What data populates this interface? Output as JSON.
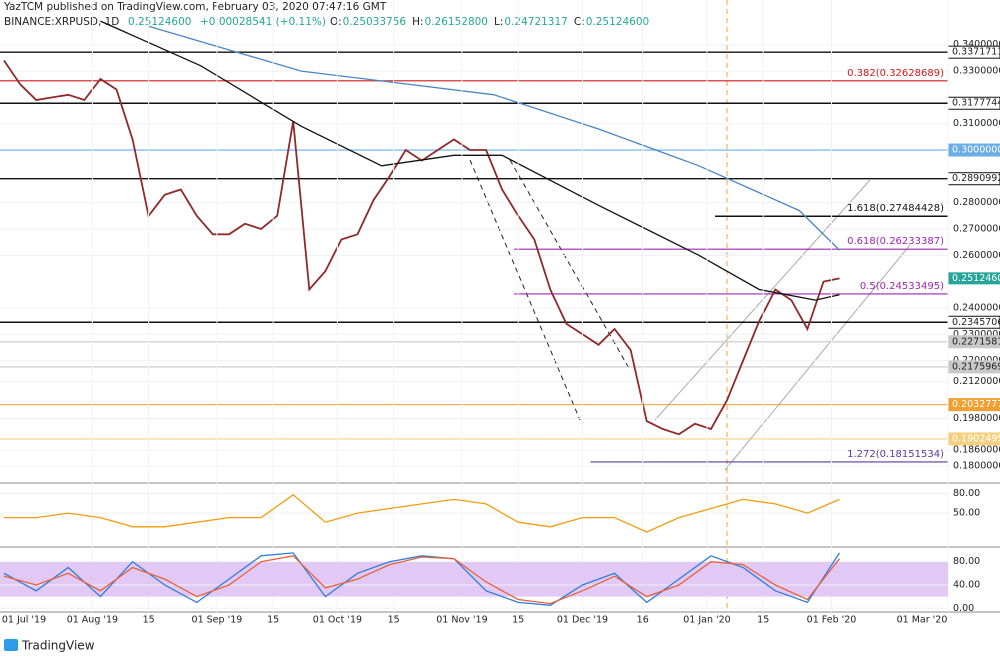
{
  "header": {
    "publisher": "YazTCM published on TradingView.com, February 03, 2020 07:47:16 GMT",
    "symbol": "BINANCE:XRPUSD, 1D",
    "last": "0.25124600",
    "change": "+0.00028541 (+0.11%)",
    "ohlc": [
      {
        "key": "O:",
        "value": "0.25033756"
      },
      {
        "key": "H:",
        "value": "0.26152800"
      },
      {
        "key": "L:",
        "value": "0.24721317"
      },
      {
        "key": "C:",
        "value": "0.25124600"
      }
    ]
  },
  "footer": {
    "brand": "TradingView"
  },
  "chart_data": [
    {
      "type": "line",
      "x": [
        "2019-07-10",
        "2019-07-14",
        "2019-07-18",
        "2019-07-22",
        "2019-07-26",
        "2019-07-30",
        "2019-08-03",
        "2019-08-07",
        "2019-08-11",
        "2019-08-15",
        "2019-08-19",
        "2019-08-23",
        "2019-08-27",
        "2019-08-31",
        "2019-09-04",
        "2019-09-08",
        "2019-09-12",
        "2019-09-16",
        "2019-09-20",
        "2019-09-24",
        "2019-09-28",
        "2019-10-02",
        "2019-10-06",
        "2019-10-10",
        "2019-10-14",
        "2019-10-18",
        "2019-10-22",
        "2019-10-26",
        "2019-10-30",
        "2019-11-03",
        "2019-11-07",
        "2019-11-11",
        "2019-11-15",
        "2019-11-19",
        "2019-11-23",
        "2019-11-27",
        "2019-12-01",
        "2019-12-05",
        "2019-12-09",
        "2019-12-13",
        "2019-12-17",
        "2019-12-21",
        "2019-12-25",
        "2019-12-29",
        "2020-01-02",
        "2020-01-06",
        "2020-01-10",
        "2020-01-14",
        "2020-01-18",
        "2020-01-22",
        "2020-01-26",
        "2020-01-30",
        "2020-02-03"
      ],
      "series": [
        {
          "color": "#8e2a2a",
          "values": [
            0.334,
            0.325,
            0.319,
            0.32,
            0.321,
            0.319,
            0.327,
            0.323,
            0.304,
            0.275,
            0.283,
            0.285,
            0.275,
            0.268,
            0.268,
            0.272,
            0.27,
            0.275,
            0.311,
            0.247,
            0.254,
            0.266,
            0.268,
            0.281,
            0.29,
            0.3,
            0.296,
            0.3,
            0.304,
            0.3,
            0.3,
            0.285,
            0.275,
            0.266,
            0.247,
            0.234,
            0.23,
            0.226,
            0.232,
            0.224,
            0.197,
            0.194,
            0.192,
            0.196,
            0.194,
            0.205,
            0.22,
            0.235,
            0.247,
            0.243,
            0.232,
            0.25,
            0.251246
          ]
        },
        {
          "color": "#4a86c5",
          "x": [
            "2019-08-15",
            "2019-09-22",
            "2019-11-09",
            "2019-12-05",
            "2019-12-30",
            "2020-01-24",
            "2020-02-03"
          ],
          "values": [
            0.347,
            0.33,
            0.321,
            0.308,
            0.294,
            0.277,
            0.262
          ]
        },
        {
          "color": "#111111",
          "x": [
            "2019-08-03",
            "2019-08-28",
            "2019-09-22",
            "2019-10-12",
            "2019-10-30",
            "2019-11-11",
            "2019-12-05",
            "2019-12-30",
            "2020-01-14",
            "2020-01-28",
            "2020-02-03"
          ],
          "values": [
            0.349,
            0.332,
            0.309,
            0.294,
            0.298,
            0.298,
            0.279,
            0.26,
            0.247,
            0.243,
            0.245
          ]
        }
      ],
      "xlim": [
        "2019-07-09",
        "2020-03-01"
      ],
      "xticks": [
        {
          "value": "2019-07-01",
          "label": "01 Jul '19"
        },
        {
          "value": "2019-08-01",
          "label": "01 Aug '19"
        },
        {
          "value": "2019-08-15",
          "label": "15"
        },
        {
          "value": "2019-09-01",
          "label": "01 Sep '19"
        },
        {
          "value": "2019-09-15",
          "label": "15"
        },
        {
          "value": "2019-10-01",
          "label": "01 Oct '19"
        },
        {
          "value": "2019-10-15",
          "label": "15"
        },
        {
          "value": "2019-11-01",
          "label": "01 Nov '19"
        },
        {
          "value": "2019-11-15",
          "label": "15"
        },
        {
          "value": "2019-12-01",
          "label": "01 Dec '19"
        },
        {
          "value": "2019-12-16",
          "label": "16"
        },
        {
          "value": "2020-01-01",
          "label": "01 Jan '20"
        },
        {
          "value": "2020-01-15",
          "label": "15"
        },
        {
          "value": "2020-02-01",
          "label": "01 Feb '20"
        },
        {
          "value": "2020-03-01",
          "label": "01 Mar '20"
        }
      ],
      "ylim": [
        0.1735,
        0.357
      ],
      "yticks": [
        {
          "value": 0.34,
          "label": "0.34000000"
        },
        {
          "value": 0.33,
          "label": "0.33000000"
        },
        {
          "value": 0.31,
          "label": "0.31000000"
        },
        {
          "value": 0.28,
          "label": "0.28000000"
        },
        {
          "value": 0.27,
          "label": "0.27000000"
        },
        {
          "value": 0.26,
          "label": "0.26000000"
        },
        {
          "value": 0.24,
          "label": "0.24000000"
        },
        {
          "value": 0.23,
          "label": "0.23000000"
        },
        {
          "value": 0.22,
          "label": "0.22000000"
        },
        {
          "value": 0.212,
          "label": "0.21200000"
        },
        {
          "value": 0.198,
          "label": "0.19800000"
        },
        {
          "value": 0.186,
          "label": "0.18600000"
        },
        {
          "value": 0.18,
          "label": "0.18000000"
        }
      ],
      "levels": [
        {
          "value": 0.33717116,
          "label": "0.33717116",
          "color": "#111111",
          "place": "axis"
        },
        {
          "value": 0.32628689,
          "label": "0.382(0.32628689)",
          "color": "#d01818",
          "place": "inline"
        },
        {
          "value": 0.31777446,
          "label": "0.31777446",
          "color": "#111111",
          "place": "axis"
        },
        {
          "value": 0.3,
          "label": "0.30000000",
          "color": "#6aaee8",
          "place": "axis"
        },
        {
          "value": 0.2890992,
          "label": "0.28909920",
          "color": "#111111",
          "place": "axis"
        },
        {
          "value": 0.27484428,
          "label": "1.618(0.27484428)",
          "color": "#111111",
          "place": "inline",
          "from": "2020-01-03"
        },
        {
          "value": 0.26233387,
          "label": "0.618(0.26233387)",
          "color": "#9c27b0",
          "place": "inline",
          "from": "2019-11-14"
        },
        {
          "value": 0.24533495,
          "label": "0.5(0.24533495)",
          "color": "#9c27b0",
          "place": "inline",
          "from": "2019-11-14"
        },
        {
          "value": 0.23457062,
          "label": "0.23457062",
          "color": "#111111",
          "place": "axis"
        },
        {
          "value": 0.22715817,
          "label": "0.22715817",
          "color": "#c8c8c8",
          "place": "axis"
        },
        {
          "value": 0.21759694,
          "label": "0.21759694",
          "color": "#c8c8c8",
          "place": "axis"
        },
        {
          "value": 0.2032777,
          "label": "0.20327770",
          "color": "#f0a030",
          "place": "axis"
        },
        {
          "value": 0.1902495,
          "label": "0.19024950",
          "color": "#f5d080",
          "place": "axis"
        },
        {
          "value": 0.18151534,
          "label": "1.272(0.18151534)",
          "color": "#5a3aa0",
          "place": "inline",
          "from": "2019-12-03"
        }
      ],
      "price_marker": {
        "value": 0.251246,
        "label": "0.25124600",
        "color": "#26a69a"
      }
    },
    {
      "type": "line",
      "x": [
        "2019-07-10",
        "2019-07-18",
        "2019-07-26",
        "2019-08-03",
        "2019-08-11",
        "2019-08-19",
        "2019-08-27",
        "2019-09-04",
        "2019-09-12",
        "2019-09-20",
        "2019-09-28",
        "2019-10-06",
        "2019-10-14",
        "2019-10-22",
        "2019-10-30",
        "2019-11-07",
        "2019-11-15",
        "2019-11-23",
        "2019-12-01",
        "2019-12-09",
        "2019-12-17",
        "2019-12-25",
        "2020-01-02",
        "2020-01-10",
        "2020-01-18",
        "2020-01-26",
        "2020-02-03"
      ],
      "series": [
        {
          "color": "#f39c12",
          "values": [
            43,
            43,
            50,
            43,
            29,
            29,
            36,
            43,
            43,
            78,
            36,
            50,
            57,
            64,
            71,
            64,
            36,
            29,
            43,
            43,
            21,
            43,
            57,
            71,
            64,
            50,
            71
          ]
        }
      ],
      "ylim": [
        1,
        90
      ],
      "yticks": [
        {
          "value": 80,
          "label": "80.00"
        },
        {
          "value": 50,
          "label": "50.00"
        }
      ]
    },
    {
      "type": "line",
      "x": [
        "2019-07-10",
        "2019-07-18",
        "2019-07-26",
        "2019-08-03",
        "2019-08-11",
        "2019-08-19",
        "2019-08-27",
        "2019-09-04",
        "2019-09-12",
        "2019-09-20",
        "2019-09-28",
        "2019-10-06",
        "2019-10-14",
        "2019-10-22",
        "2019-10-30",
        "2019-11-07",
        "2019-11-15",
        "2019-11-23",
        "2019-12-01",
        "2019-12-09",
        "2019-12-17",
        "2019-12-25",
        "2020-01-02",
        "2020-01-10",
        "2020-01-18",
        "2020-01-26",
        "2020-02-03"
      ],
      "series": [
        {
          "color": "#2f7fd8",
          "values": [
            60,
            30,
            70,
            20,
            80,
            40,
            10,
            50,
            90,
            95,
            20,
            60,
            80,
            90,
            85,
            30,
            10,
            5,
            40,
            60,
            10,
            50,
            90,
            70,
            30,
            10,
            95
          ]
        },
        {
          "color": "#e8613a",
          "values": [
            55,
            40,
            60,
            30,
            70,
            50,
            20,
            40,
            80,
            90,
            35,
            50,
            75,
            88,
            85,
            45,
            15,
            8,
            30,
            55,
            20,
            40,
            80,
            75,
            40,
            15,
            85
          ]
        }
      ],
      "band": [
        20,
        80
      ],
      "ylim": [
        -3,
        100
      ],
      "yticks": [
        {
          "value": 80,
          "label": "80.00"
        },
        {
          "value": 40,
          "label": "40.00"
        },
        {
          "value": 0,
          "label": "0.00"
        }
      ]
    }
  ]
}
